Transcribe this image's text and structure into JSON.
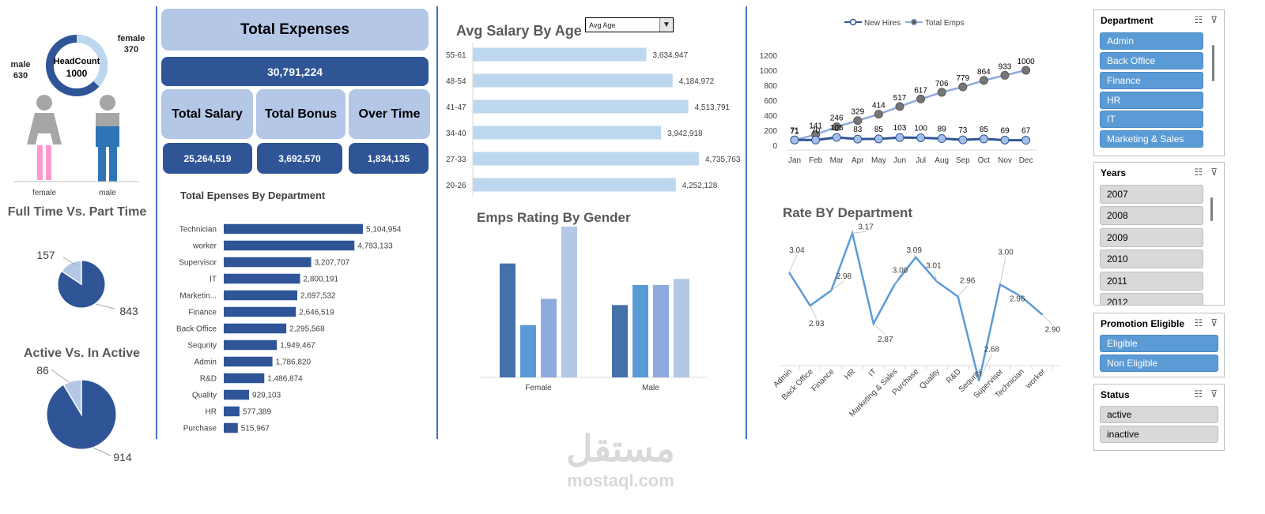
{
  "headcount": {
    "title": "HeadCount",
    "total": "1000",
    "male_label": "male",
    "male_value": "630",
    "female_label": "female",
    "female_value": "370",
    "female_share": 0.37,
    "colors": {
      "male": "#2f5597",
      "female": "#bdd7ee"
    }
  },
  "gender_icons": {
    "female_label": "female",
    "male_label": "male",
    "female_color": "#ff99cc",
    "male_color": "#2e75b6"
  },
  "fulltime": {
    "title": "Full Time Vs. Part Time",
    "part_value": "157",
    "full_value": "843",
    "part": 157,
    "full": 843
  },
  "active": {
    "title": "Active Vs. In Active",
    "inactive_value": "86",
    "active_value": "914",
    "inactive": 86,
    "active": 914
  },
  "kpis": {
    "total_expenses_label": "Total Expenses",
    "total_expenses_value": "30,791,224",
    "total_salary_label": "Total Salary",
    "total_salary_value": "25,264,519",
    "total_bonus_label": "Total Bonus",
    "total_bonus_value": "3,692,570",
    "overtime_label": "Over Time",
    "overtime_value": "1,834,135"
  },
  "age_dropdown": {
    "value": "Avg Age"
  },
  "watermark": {
    "arabic": "مستقل",
    "latin": "mostaql.com"
  },
  "chart_data": [
    {
      "type": "bar",
      "title": "Total Epenses By Department",
      "orientation": "horizontal",
      "categories": [
        "Technician",
        "worker",
        "Supervisor",
        "IT",
        "Marketin...",
        "Finance",
        "Back Office",
        "Sequrity",
        "Admin",
        "R&D",
        "Quality",
        "HR",
        "Purchase"
      ],
      "values": [
        5104954,
        4793133,
        3207707,
        2800191,
        2697532,
        2646519,
        2295568,
        1949467,
        1786820,
        1486874,
        929103,
        577389,
        515967
      ],
      "labels": [
        "5,104,954",
        "4,793,133",
        "3,207,707",
        "2,800,191",
        "2,697,532",
        "2,646,519",
        "2,295,568",
        "1,949,467",
        "1,786,820",
        "1,486,874",
        "929,103",
        "577,389",
        "515,967"
      ],
      "color": "#2f5597"
    },
    {
      "type": "bar",
      "title": "Avg Salary By Age",
      "orientation": "horizontal",
      "categories": [
        "55-61",
        "48-54",
        "41-47",
        "34-40",
        "27-33",
        "20-26"
      ],
      "values": [
        3634947,
        4184972,
        4513791,
        3942918,
        4735763,
        4252128
      ],
      "labels": [
        "3,634,947",
        "4,184,972",
        "4,513,791",
        "3,942,918",
        "4,735,763",
        "4,252,128"
      ],
      "color": "#bdd7ee"
    },
    {
      "type": "bar",
      "title": "Emps Rating By Gender",
      "categories": [
        "Female",
        "Male"
      ],
      "series": [
        {
          "values": [
            0.74,
            0.47
          ],
          "color": "#4472a8"
        },
        {
          "values": [
            0.34,
            0.6
          ],
          "color": "#5b9bd5"
        },
        {
          "values": [
            0.51,
            0.6
          ],
          "color": "#8faadc"
        },
        {
          "values": [
            0.98,
            0.64
          ],
          "color": "#b4c7e7"
        }
      ]
    },
    {
      "type": "line",
      "categories": [
        "Jan",
        "Feb",
        "Mar",
        "Apr",
        "May",
        "Jun",
        "Jul",
        "Aug",
        "Sep",
        "Oct",
        "Nov",
        "Dec"
      ],
      "series": [
        {
          "name": "New Hires",
          "values": [
            71,
            70,
            105,
            83,
            85,
            103,
            100,
            89,
            73,
            85,
            69,
            67
          ],
          "color": "#2f5597"
        },
        {
          "name": "Total Emps",
          "values": [
            71,
            141,
            246,
            329,
            414,
            517,
            617,
            706,
            779,
            864,
            933,
            1000
          ],
          "color": "#8eaadb"
        }
      ],
      "y_ticks": [
        "0",
        "200",
        "400",
        "600",
        "800",
        "1000",
        "1200"
      ],
      "ylim": [
        0,
        1200
      ],
      "legend": "top"
    },
    {
      "type": "line",
      "title": "Rate BY Department",
      "categories": [
        "Admin",
        "Back Office",
        "Finance",
        "HR",
        "IT",
        "Marketing & Sales",
        "Purchase",
        "Quality",
        "R&D",
        "Sequrity",
        "Supervisor",
        "Technician",
        "worker"
      ],
      "values": [
        3.04,
        2.93,
        2.98,
        3.17,
        2.87,
        3.0,
        3.09,
        3.01,
        2.96,
        2.68,
        3.0,
        2.96,
        2.9
      ],
      "labels": [
        "3.04",
        "2.93",
        "2.98",
        "3.17",
        "2.87",
        "3.00",
        "3.09",
        "3.01",
        "2.96",
        "2.68",
        "3.00",
        "2.96",
        "2.90"
      ],
      "color": "#5b9bd5"
    }
  ],
  "slicers": {
    "department": {
      "title": "Department",
      "items": [
        "Admin",
        "Back Office",
        "Finance",
        "HR",
        "IT",
        "Marketing & Sales"
      ]
    },
    "years": {
      "title": "Years",
      "items": [
        "2007",
        "2008",
        "2009",
        "2010",
        "2011",
        "2012"
      ]
    },
    "promotion": {
      "title": "Promotion Eligible",
      "items": [
        "Eligible",
        "Non Eligible"
      ]
    },
    "status": {
      "title": "Status",
      "items": [
        "active",
        "inactive"
      ]
    }
  }
}
